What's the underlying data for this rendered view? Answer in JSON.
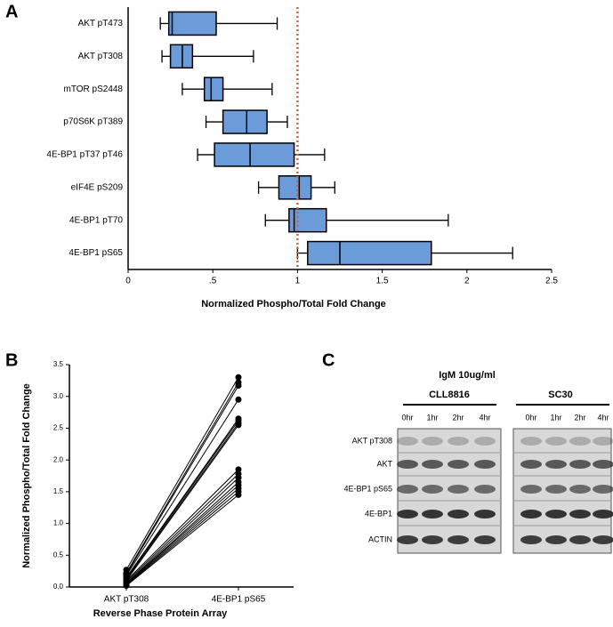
{
  "chart_data": [
    {
      "type": "box",
      "panel": "A",
      "orientation": "horizontal",
      "xlabel": "Normalized Phospho/Total Fold Change",
      "categories": [
        "AKT pT473",
        "AKT pT308",
        "mTOR pS2448",
        "p70S6K pT389",
        "4E-BP1 pT37 pT46",
        "eIF4E pS209",
        "4E-BP1 pT70",
        "4E-BP1 pS65"
      ],
      "boxes": [
        {
          "min": 0.19,
          "q1": 0.24,
          "median": 0.26,
          "q3": 0.52,
          "max": 0.88
        },
        {
          "min": 0.2,
          "q1": 0.25,
          "median": 0.32,
          "q3": 0.38,
          "max": 0.74
        },
        {
          "min": 0.32,
          "q1": 0.45,
          "median": 0.49,
          "q3": 0.56,
          "max": 0.85
        },
        {
          "min": 0.46,
          "q1": 0.56,
          "median": 0.7,
          "q3": 0.82,
          "max": 0.94
        },
        {
          "min": 0.41,
          "q1": 0.51,
          "median": 0.72,
          "q3": 0.98,
          "max": 1.16
        },
        {
          "min": 0.77,
          "q1": 0.89,
          "median": 1.01,
          "q3": 1.08,
          "max": 1.22
        },
        {
          "min": 0.81,
          "q1": 0.95,
          "median": 0.98,
          "q3": 1.17,
          "max": 1.89
        },
        {
          "min": 1.0,
          "q1": 1.06,
          "median": 1.25,
          "q3": 1.79,
          "max": 2.27
        }
      ],
      "color": "#6b9bd8",
      "reference_line": 1,
      "reference_color": "#d9603b",
      "xlim": [
        0,
        2.5
      ],
      "xticks": [
        0,
        {
          "value": 0.5,
          "label": ".5"
        },
        1,
        1.5,
        2,
        2.5
      ]
    },
    {
      "type": "paired",
      "panel": "B",
      "ylabel": "Normalized Phospho/Total Fold Change",
      "xlabel": "Reverse Phase Protein Array",
      "categories": [
        "AKT pT308",
        "4E-BP1 pS65"
      ],
      "color": "#000000",
      "ylim": [
        0,
        3.5
      ],
      "yticks": [
        {
          "value": 0,
          "label": "0.0"
        },
        0.5,
        {
          "value": 1,
          "label": "1.0"
        },
        1.5,
        {
          "value": 2,
          "label": "2.0"
        },
        2.5,
        {
          "value": 3,
          "label": "3.0"
        },
        3.5
      ],
      "series": [
        {
          "values": [
            0.27,
            3.3
          ]
        },
        {
          "values": [
            0.22,
            3.22
          ]
        },
        {
          "values": [
            0.2,
            3.17
          ]
        },
        {
          "values": [
            0.18,
            2.95
          ]
        },
        {
          "values": [
            0.15,
            2.65
          ]
        },
        {
          "values": [
            0.14,
            2.62
          ]
        },
        {
          "values": [
            0.12,
            2.58
          ]
        },
        {
          "values": [
            0.1,
            2.55
          ]
        },
        {
          "values": [
            0.1,
            1.85
          ]
        },
        {
          "values": [
            0.08,
            1.78
          ]
        },
        {
          "values": [
            0.06,
            1.72
          ]
        },
        {
          "values": [
            0.05,
            1.65
          ]
        },
        {
          "values": [
            0.05,
            1.6
          ]
        },
        {
          "values": [
            0.04,
            1.55
          ]
        },
        {
          "values": [
            0.03,
            1.5
          ]
        },
        {
          "values": [
            0.02,
            1.45
          ]
        }
      ]
    }
  ],
  "blot": {
    "panel": "C",
    "title": "IgM 10ug/ml",
    "groups": [
      "CLL8816",
      "SC30"
    ],
    "timepoints": [
      "0hr",
      "1hr",
      "2hr",
      "4hr",
      "0hr",
      "1hr",
      "2hr",
      "4hr"
    ],
    "rows": [
      "AKT pT308",
      "AKT",
      "4E-BP1 pS65",
      "4E-BP1",
      "ACTIN"
    ]
  }
}
